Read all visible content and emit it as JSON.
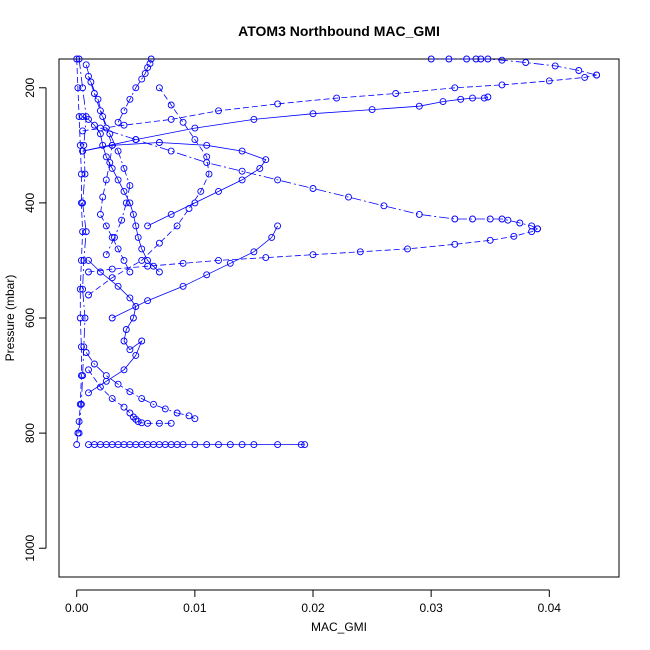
{
  "chart_data": {
    "type": "scatter",
    "title": "ATOM3 Northbound MAC_GMI",
    "xlabel": "MAC_GMI",
    "ylabel": "Pressure (mbar)",
    "xlim": [
      -0.0015,
      0.0459
    ],
    "ylim": [
      1050,
      150
    ],
    "x_ticks": [
      0.0,
      0.01,
      0.02,
      0.03,
      0.04
    ],
    "x_tick_labels": [
      "0.00",
      "0.01",
      "0.02",
      "0.03",
      "0.04"
    ],
    "y_ticks": [
      200,
      400,
      600,
      800,
      1000
    ],
    "y_tick_labels": [
      "200",
      "400",
      "600",
      "800",
      "1000"
    ],
    "grid": false,
    "color": "#0000ff",
    "marker": "open-circle",
    "series": [
      {
        "x": [
          0.0,
          0.0001,
          0.0002,
          0.0003,
          0.0004,
          0.0004,
          0.0005,
          0.0004,
          0.0003,
          0.0003,
          0.0004,
          0.0004,
          0.0003,
          0.0002,
          0.0001,
          0.0
        ],
        "y": [
          150,
          200,
          250,
          300,
          350,
          400,
          450,
          500,
          550,
          600,
          650,
          700,
          750,
          780,
          800,
          820
        ]
      },
      {
        "x": [
          0.0002,
          0.0005,
          0.0008,
          0.0006,
          0.0007,
          0.0005,
          0.0008,
          0.0006,
          0.0005,
          0.0007,
          0.0006,
          0.0005,
          0.0004,
          0.0002
        ],
        "y": [
          150,
          200,
          250,
          300,
          350,
          400,
          450,
          500,
          550,
          600,
          650,
          700,
          750,
          800
        ]
      },
      {
        "x": [
          0.001,
          0.0015,
          0.002,
          0.0025,
          0.003,
          0.0035,
          0.004,
          0.0045,
          0.005,
          0.0055,
          0.006,
          0.0065,
          0.007,
          0.0075,
          0.008,
          0.0085,
          0.009,
          0.01,
          0.011,
          0.012,
          0.013,
          0.014,
          0.015,
          0.017,
          0.019,
          0.0193
        ],
        "y": [
          820,
          820,
          820,
          820,
          820,
          820,
          820,
          820,
          820,
          820,
          820,
          820,
          820,
          820,
          820,
          820,
          820,
          820,
          820,
          820,
          820,
          820,
          820,
          820,
          820,
          820
        ]
      },
      {
        "x": [
          0.001,
          0.002,
          0.003,
          0.004,
          0.0045,
          0.0048,
          0.005,
          0.0052,
          0.0055,
          0.006,
          0.007,
          0.008
        ],
        "y": [
          690,
          720,
          740,
          755,
          765,
          772,
          776,
          780,
          782,
          783,
          783,
          783
        ]
      },
      {
        "x": [
          0.0008,
          0.0015,
          0.0025,
          0.0035,
          0.0045,
          0.0055,
          0.0065,
          0.0075,
          0.0085,
          0.0095,
          0.01
        ],
        "y": [
          660,
          680,
          700,
          715,
          728,
          740,
          750,
          758,
          765,
          770,
          775
        ]
      },
      {
        "x": [
          0.001,
          0.002,
          0.0035,
          0.0045,
          0.005,
          0.0048,
          0.0042,
          0.004,
          0.0045,
          0.0055,
          0.005,
          0.004,
          0.0025,
          0.001
        ],
        "y": [
          500,
          520,
          545,
          565,
          580,
          600,
          620,
          640,
          655,
          640,
          665,
          690,
          710,
          730
        ]
      },
      {
        "x": [
          0.001,
          0.003,
          0.006,
          0.009,
          0.012,
          0.016,
          0.02,
          0.024,
          0.028,
          0.032,
          0.035,
          0.037,
          0.0385,
          0.039
        ],
        "y": [
          520,
          515,
          510,
          505,
          500,
          495,
          490,
          485,
          480,
          472,
          465,
          458,
          450,
          445
        ]
      },
      {
        "x": [
          0.039,
          0.0385,
          0.0375,
          0.0365,
          0.036,
          0.035,
          0.0335,
          0.032,
          0.029,
          0.026,
          0.023,
          0.02,
          0.017,
          0.014,
          0.011,
          0.008,
          0.005,
          0.002
        ],
        "y": [
          445,
          440,
          435,
          430,
          428,
          428,
          428,
          428,
          420,
          405,
          390,
          375,
          360,
          345,
          330,
          310,
          290,
          270
        ]
      },
      {
        "x": [
          0.0005,
          0.003,
          0.007,
          0.011,
          0.014,
          0.016,
          0.0155,
          0.014,
          0.012,
          0.01,
          0.008,
          0.006
        ],
        "y": [
          310,
          300,
          295,
          300,
          310,
          325,
          340,
          360,
          380,
          400,
          420,
          440
        ]
      },
      {
        "x": [
          0.0005,
          0.004,
          0.008,
          0.012,
          0.017,
          0.022,
          0.027,
          0.032,
          0.036,
          0.04,
          0.043,
          0.044
        ],
        "y": [
          275,
          265,
          255,
          240,
          228,
          218,
          210,
          200,
          195,
          188,
          182,
          178
        ]
      },
      {
        "x": [
          0.044,
          0.0425,
          0.0405,
          0.038,
          0.036,
          0.0348,
          0.0342,
          0.0338,
          0.033,
          0.0315,
          0.03
        ],
        "y": [
          178,
          170,
          162,
          156,
          152,
          150,
          150,
          150,
          150,
          150,
          150
        ]
      },
      {
        "x": [
          0.0005,
          0.005,
          0.01,
          0.015,
          0.02,
          0.025,
          0.029,
          0.031,
          0.0325,
          0.0335,
          0.0345,
          0.0348
        ],
        "y": [
          310,
          290,
          270,
          255,
          245,
          238,
          232,
          224,
          220,
          218,
          218,
          216
        ]
      },
      {
        "x": [
          0.001,
          0.003,
          0.0055,
          0.007,
          0.0085,
          0.0095,
          0.0105,
          0.0112,
          0.011,
          0.01,
          0.009,
          0.008,
          0.007
        ],
        "y": [
          560,
          530,
          500,
          470,
          440,
          410,
          380,
          350,
          320,
          290,
          260,
          230,
          200
        ]
      },
      {
        "x": [
          0.0035,
          0.004,
          0.0045,
          0.005,
          0.0055,
          0.0058,
          0.006,
          0.0062,
          0.0063
        ],
        "y": [
          260,
          240,
          220,
          200,
          185,
          175,
          165,
          158,
          150
        ]
      },
      {
        "x": [
          0.0005,
          0.001,
          0.0015,
          0.002,
          0.0022,
          0.0025,
          0.003,
          0.0035,
          0.004,
          0.0045,
          0.0048,
          0.005,
          0.0052,
          0.0055,
          0.006,
          0.0065,
          0.007
        ],
        "y": [
          250,
          255,
          265,
          280,
          300,
          320,
          340,
          360,
          380,
          400,
          420,
          440,
          460,
          480,
          500,
          510,
          520
        ]
      },
      {
        "x": [
          0.001,
          0.0015,
          0.002,
          0.0025,
          0.003,
          0.0028,
          0.0025,
          0.0022,
          0.002,
          0.0025,
          0.003,
          0.0035,
          0.004,
          0.0045
        ],
        "y": [
          180,
          210,
          240,
          270,
          300,
          330,
          360,
          390,
          420,
          440,
          460,
          480,
          500,
          520
        ]
      },
      {
        "x": [
          0.0008,
          0.0012,
          0.0018,
          0.0022,
          0.0028,
          0.0035,
          0.004,
          0.0045,
          0.0042,
          0.0038,
          0.0032,
          0.0025
        ],
        "y": [
          160,
          190,
          220,
          250,
          280,
          310,
          340,
          370,
          400,
          430,
          460,
          490
        ]
      },
      {
        "x": [
          0.003,
          0.006,
          0.009,
          0.011,
          0.013,
          0.015,
          0.0165,
          0.017
        ],
        "y": [
          600,
          570,
          545,
          525,
          505,
          485,
          460,
          440
        ]
      }
    ]
  }
}
